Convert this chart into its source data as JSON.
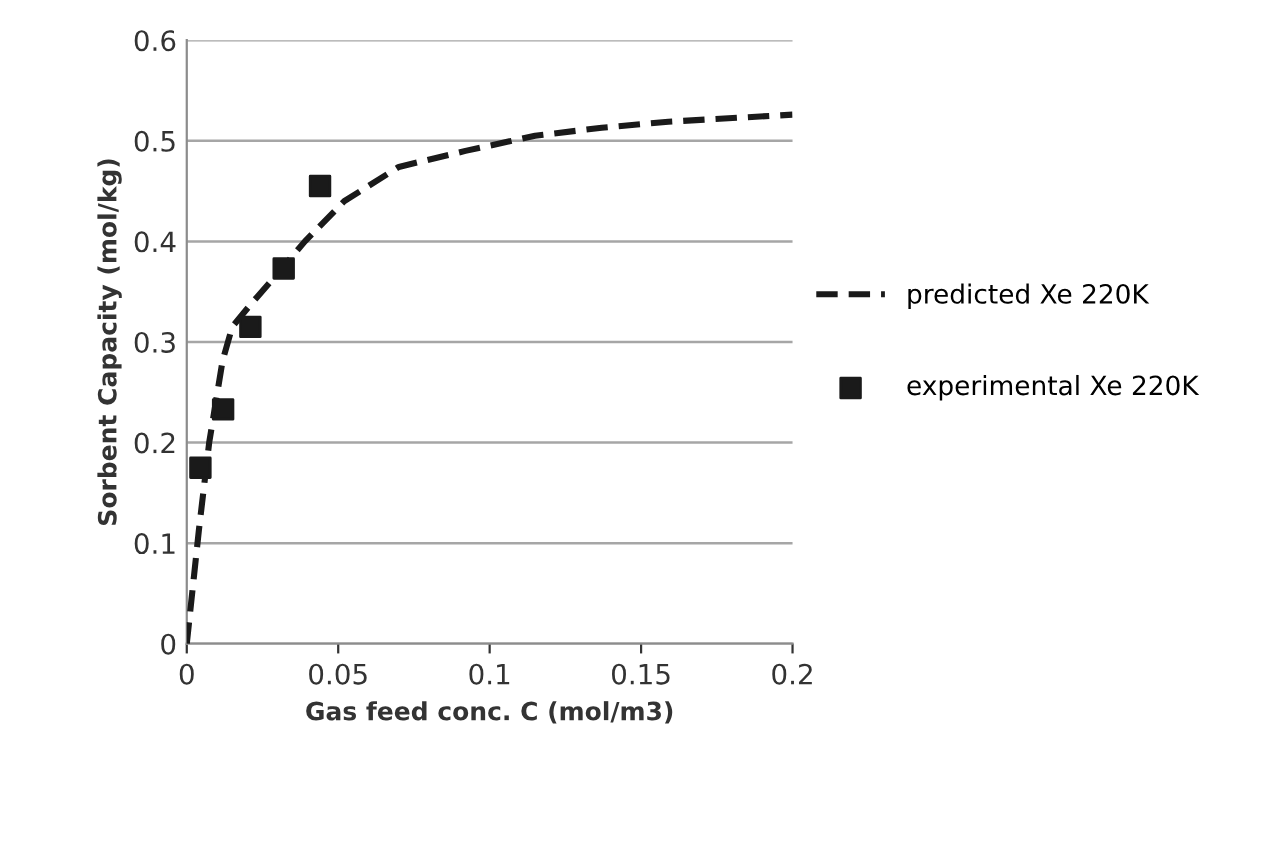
{
  "chart_data": {
    "type": "line",
    "xlabel": "Gas feed conc. C (mol/m3)",
    "ylabel": "Sorbent Capacity (mol/kg)",
    "xlim": [
      0,
      0.2
    ],
    "xticks": [
      0,
      0.05,
      0.1,
      0.15,
      0.2
    ],
    "ylim": [
      0,
      0.6
    ],
    "yticks": [
      0,
      0.1,
      0.2,
      0.3,
      0.4,
      0.5,
      0.6
    ],
    "grid": "y",
    "legend": "right",
    "series": [
      {
        "name": "predicted Xe 220K",
        "line_style": "dashed",
        "marker": "none",
        "color": "#1a1a1a",
        "x": [
          0,
          0.004,
          0.0074,
          0.0118,
          0.015,
          0.021,
          0.03,
          0.039,
          0.052,
          0.07,
          0.092,
          0.115,
          0.137,
          0.159,
          0.2
        ],
        "values": [
          0,
          0.113,
          0.2,
          0.281,
          0.315,
          0.337,
          0.368,
          0.4,
          0.44,
          0.474,
          0.49,
          0.505,
          0.513,
          0.519,
          0.526
        ]
      },
      {
        "name": "experimental Xe 220K",
        "type": "scatter",
        "marker": "square",
        "color": "#1a1a1a",
        "x": [
          0.0045,
          0.012,
          0.021,
          0.032,
          0.044
        ],
        "values": [
          0.175,
          0.233,
          0.315,
          0.373,
          0.455
        ]
      }
    ]
  }
}
